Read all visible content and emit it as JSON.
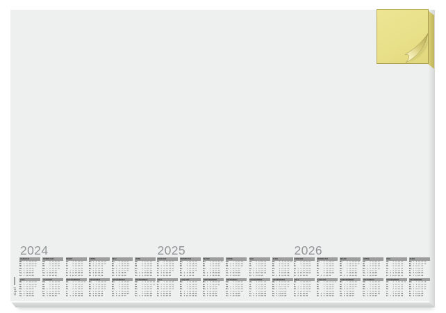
{
  "product": {
    "description": "desk pad with 3-year calendar and yellow notes block",
    "brand_mark": "sigel"
  },
  "calendar": {
    "years": [
      {
        "label": "2024",
        "year": 2024
      },
      {
        "label": "2025",
        "year": 2025
      },
      {
        "label": "2026",
        "year": 2026
      }
    ],
    "month_names": [
      "JANUAR",
      "FEBRUAR",
      "MÄRZ",
      "APRIL",
      "MAI",
      "JUNI",
      "JULI",
      "AUGUST",
      "SEPTEMBER",
      "OKTOBER",
      "NOVEMBER",
      "DEZEMBER"
    ],
    "weekday_labels": [
      "Mo",
      "Di",
      "Mi",
      "Do",
      "Fr",
      "Sa",
      "So"
    ]
  },
  "colors": {
    "pad_surface": "#eef0ef",
    "pad_edge": "#d6d9d8",
    "year_text": "#8f9596",
    "header_bar": "#9d9d9d",
    "header_text": "#2f2f2f",
    "weekday_label": "#3e3e3e",
    "day_number": "#7c7c7c",
    "note_face": "#e9e08a",
    "note_side": "#ddd17b",
    "note_border": "#b5a955",
    "curl_dark": "#b3a751",
    "curl_light": "#f6f1bd"
  }
}
